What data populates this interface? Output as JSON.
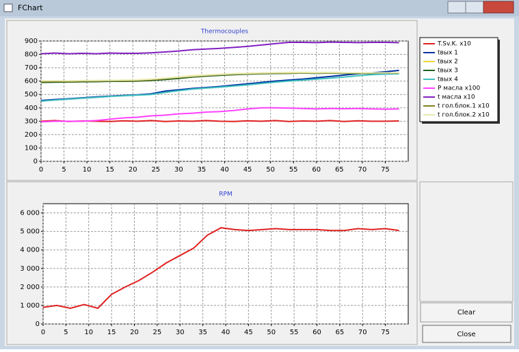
{
  "window": {
    "title": "FChart"
  },
  "buttons": {
    "clear": "Clear",
    "close": "Close"
  },
  "chart_data": [
    {
      "type": "line",
      "title": "Thermocouples",
      "x": [
        0,
        3,
        6,
        9,
        12,
        15,
        18,
        21,
        24,
        27,
        30,
        33,
        36,
        39,
        42,
        45,
        48,
        51,
        54,
        57,
        60,
        63,
        66,
        69,
        72,
        75,
        78
      ],
      "xlim": [
        0,
        80
      ],
      "xticks": [
        0,
        5,
        10,
        15,
        20,
        25,
        30,
        35,
        40,
        45,
        50,
        55,
        60,
        65,
        70,
        75
      ],
      "ylim": [
        0,
        900
      ],
      "yticks": [
        0,
        100,
        200,
        300,
        400,
        500,
        600,
        700,
        800,
        900
      ],
      "grid": true,
      "legend": "right",
      "series": [
        {
          "name": "T.Sv.K. x10",
          "color": "#e02020",
          "values": [
            300,
            305,
            298,
            302,
            300,
            298,
            303,
            300,
            305,
            298,
            302,
            300,
            305,
            300,
            298,
            303,
            300,
            305,
            298,
            302,
            300,
            305,
            298,
            303,
            300,
            300,
            302
          ]
        },
        {
          "name": "tвых 1",
          "color": "#0030a0",
          "values": [
            455,
            462,
            468,
            475,
            482,
            488,
            493,
            497,
            505,
            525,
            535,
            545,
            552,
            560,
            570,
            580,
            590,
            600,
            608,
            615,
            625,
            635,
            645,
            655,
            662,
            670,
            680
          ]
        },
        {
          "name": "tвых 2",
          "color": "#e8d830",
          "values": [
            600,
            600,
            600,
            602,
            603,
            605,
            605,
            608,
            612,
            620,
            630,
            640,
            645,
            650,
            655,
            658,
            660,
            662,
            664,
            665,
            663,
            665,
            662,
            662,
            660,
            660,
            662
          ]
        },
        {
          "name": "tвых 3",
          "color": "#206020",
          "values": [
            590,
            592,
            593,
            595,
            596,
            598,
            598,
            600,
            605,
            612,
            620,
            630,
            637,
            643,
            648,
            652,
            655,
            657,
            658,
            660,
            658,
            660,
            658,
            658,
            657,
            657,
            658
          ]
        },
        {
          "name": "tвых 4",
          "color": "#40c0c0",
          "values": [
            450,
            458,
            465,
            472,
            478,
            485,
            490,
            495,
            500,
            515,
            528,
            540,
            548,
            555,
            563,
            572,
            582,
            592,
            600,
            607,
            615,
            622,
            630,
            640,
            648,
            652,
            655
          ]
        },
        {
          "name": "P масла x100",
          "color": "#ff40ff",
          "values": [
            295,
            300,
            300,
            300,
            305,
            315,
            325,
            330,
            340,
            345,
            355,
            360,
            368,
            372,
            380,
            392,
            400,
            400,
            398,
            395,
            392,
            395,
            393,
            395,
            392,
            390,
            392
          ]
        },
        {
          "name": "t масла x10",
          "color": "#8020c0",
          "values": [
            805,
            810,
            805,
            808,
            805,
            810,
            808,
            808,
            812,
            818,
            825,
            835,
            840,
            845,
            852,
            860,
            870,
            880,
            890,
            890,
            888,
            892,
            890,
            888,
            890,
            890,
            888
          ]
        },
        {
          "name": "t гол.блок.1 x10",
          "color": "#808020",
          "values": [
            595,
            598,
            597,
            600,
            600,
            602,
            602,
            605,
            610,
            618,
            627,
            635,
            642,
            648,
            652,
            655,
            658,
            660,
            660,
            662,
            660,
            662,
            660,
            660,
            660,
            660,
            660
          ]
        },
        {
          "name": "t гол.блок.2 x10",
          "color": "#e8e8b0",
          "values": [
            602,
            603,
            602,
            604,
            605,
            606,
            607,
            609,
            614,
            622,
            630,
            638,
            645,
            650,
            655,
            658,
            661,
            663,
            663,
            664,
            662,
            664,
            662,
            662,
            662,
            662,
            663
          ]
        }
      ]
    },
    {
      "type": "line",
      "title": "RPM",
      "x": [
        0,
        3,
        6,
        9,
        12,
        15,
        18,
        21,
        24,
        27,
        30,
        33,
        36,
        39,
        42,
        45,
        48,
        51,
        54,
        57,
        60,
        63,
        66,
        69,
        72,
        75,
        78
      ],
      "xlim": [
        0,
        80
      ],
      "xticks": [
        0,
        5,
        10,
        15,
        20,
        25,
        30,
        35,
        40,
        45,
        50,
        55,
        60,
        65,
        70,
        75
      ],
      "ylim": [
        0,
        6500
      ],
      "yticks": [
        0,
        {
          "value": 1000,
          "label": "1 000"
        },
        {
          "value": 2000,
          "label": "2 000"
        },
        {
          "value": 3000,
          "label": "3 000"
        },
        {
          "value": 4000,
          "label": "4 000"
        },
        {
          "value": 5000,
          "label": "5 000"
        },
        {
          "value": 6000,
          "label": "6 000"
        }
      ],
      "grid": true,
      "series": [
        {
          "name": "RPM",
          "color": "#e02020",
          "values": [
            900,
            1000,
            850,
            1050,
            850,
            1600,
            2000,
            2350,
            2800,
            3300,
            3700,
            4100,
            4800,
            5200,
            5100,
            5050,
            5100,
            5150,
            5100,
            5100,
            5100,
            5050,
            5050,
            5150,
            5100,
            5150,
            5050
          ]
        }
      ]
    }
  ]
}
